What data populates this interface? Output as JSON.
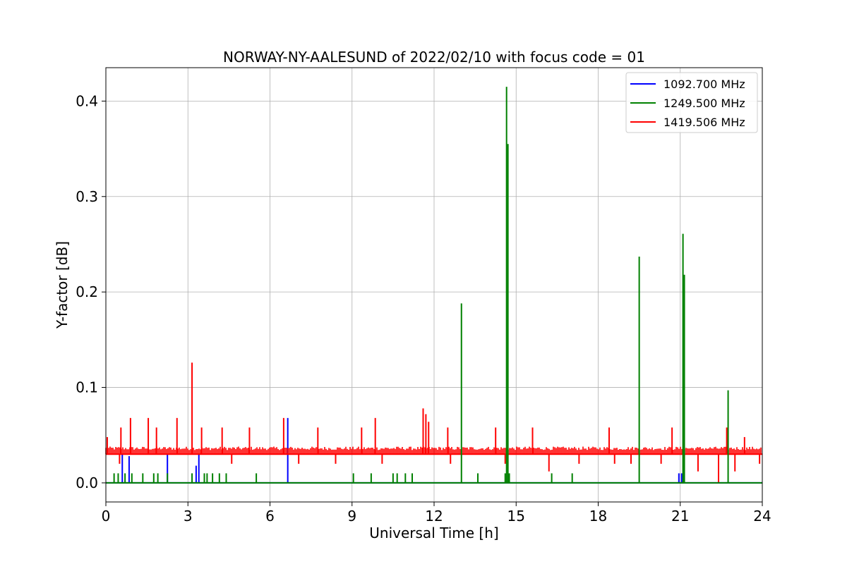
{
  "chart_data": {
    "type": "line",
    "title": "NORWAY-NY-AALESUND of 2022/02/10 with focus code = 01",
    "xlabel": "Universal Time [h]",
    "ylabel": "Y-factor [dB]",
    "xlim": [
      0,
      24
    ],
    "ylim": [
      -0.02,
      0.435
    ],
    "xticks": [
      0,
      3,
      6,
      9,
      12,
      15,
      18,
      21,
      24
    ],
    "xtick_labels": [
      "0",
      "3",
      "6",
      "9",
      "12",
      "15",
      "18",
      "21",
      "24"
    ],
    "yticks": [
      0.0,
      0.1,
      0.2,
      0.3,
      0.4
    ],
    "ytick_labels": [
      "0.0",
      "0.1",
      "0.2",
      "0.3",
      "0.4"
    ],
    "grid": true,
    "legend_position": "top-right",
    "series": [
      {
        "name": "1092.700 MHz",
        "color": "#0000ff",
        "baseline": 0.0,
        "spikes": [
          [
            0.6,
            0.03
          ],
          [
            0.85,
            0.028
          ],
          [
            2.25,
            0.03
          ],
          [
            3.3,
            0.018
          ],
          [
            3.4,
            0.03
          ],
          [
            6.65,
            0.068
          ],
          [
            20.95,
            0.01
          ],
          [
            21.05,
            0.01
          ]
        ]
      },
      {
        "name": "1249.500 MHz",
        "color": "#008000",
        "baseline": 0.0,
        "spikes": [
          [
            0.3,
            0.01
          ],
          [
            0.45,
            0.01
          ],
          [
            0.7,
            0.01
          ],
          [
            0.95,
            0.01
          ],
          [
            1.35,
            0.01
          ],
          [
            1.75,
            0.01
          ],
          [
            1.9,
            0.01
          ],
          [
            2.25,
            0.01
          ],
          [
            3.15,
            0.01
          ],
          [
            3.6,
            0.01
          ],
          [
            3.7,
            0.01
          ],
          [
            3.9,
            0.01
          ],
          [
            4.15,
            0.01
          ],
          [
            4.4,
            0.01
          ],
          [
            5.5,
            0.01
          ],
          [
            9.05,
            0.01
          ],
          [
            9.7,
            0.01
          ],
          [
            10.5,
            0.01
          ],
          [
            10.65,
            0.01
          ],
          [
            10.95,
            0.01
          ],
          [
            11.2,
            0.01
          ],
          [
            13.0,
            0.188
          ],
          [
            13.6,
            0.01
          ],
          [
            14.6,
            0.01
          ],
          [
            14.65,
            0.415
          ],
          [
            14.7,
            0.355
          ],
          [
            14.75,
            0.01
          ],
          [
            16.3,
            0.01
          ],
          [
            17.05,
            0.01
          ],
          [
            19.5,
            0.237
          ],
          [
            21.1,
            0.261
          ],
          [
            21.15,
            0.218
          ],
          [
            22.75,
            0.097
          ]
        ]
      },
      {
        "name": "1419.506 MHz",
        "color": "#ff0000",
        "baseline": 0.03,
        "noise_high": 0.038,
        "spikes": [
          [
            0.05,
            0.048
          ],
          [
            0.55,
            0.058
          ],
          [
            0.9,
            0.068
          ],
          [
            1.55,
            0.068
          ],
          [
            1.85,
            0.058
          ],
          [
            2.6,
            0.068
          ],
          [
            3.15,
            0.126
          ],
          [
            3.5,
            0.058
          ],
          [
            4.25,
            0.058
          ],
          [
            5.25,
            0.058
          ],
          [
            6.5,
            0.068
          ],
          [
            7.75,
            0.058
          ],
          [
            9.35,
            0.058
          ],
          [
            9.85,
            0.068
          ],
          [
            11.6,
            0.078
          ],
          [
            11.7,
            0.072
          ],
          [
            11.8,
            0.064
          ],
          [
            12.5,
            0.058
          ],
          [
            14.25,
            0.058
          ],
          [
            15.6,
            0.058
          ],
          [
            18.4,
            0.058
          ],
          [
            20.7,
            0.058
          ],
          [
            22.7,
            0.058
          ],
          [
            23.35,
            0.048
          ]
        ],
        "dips": [
          [
            0.5,
            0.02
          ],
          [
            4.6,
            0.02
          ],
          [
            7.05,
            0.02
          ],
          [
            8.4,
            0.02
          ],
          [
            10.1,
            0.02
          ],
          [
            12.6,
            0.02
          ],
          [
            14.6,
            0.02
          ],
          [
            16.2,
            0.012
          ],
          [
            17.3,
            0.02
          ],
          [
            18.6,
            0.02
          ],
          [
            19.2,
            0.02
          ],
          [
            20.3,
            0.02
          ],
          [
            21.65,
            0.012
          ],
          [
            22.4,
            0.0
          ],
          [
            23.0,
            0.012
          ],
          [
            23.9,
            0.02
          ]
        ]
      }
    ]
  }
}
